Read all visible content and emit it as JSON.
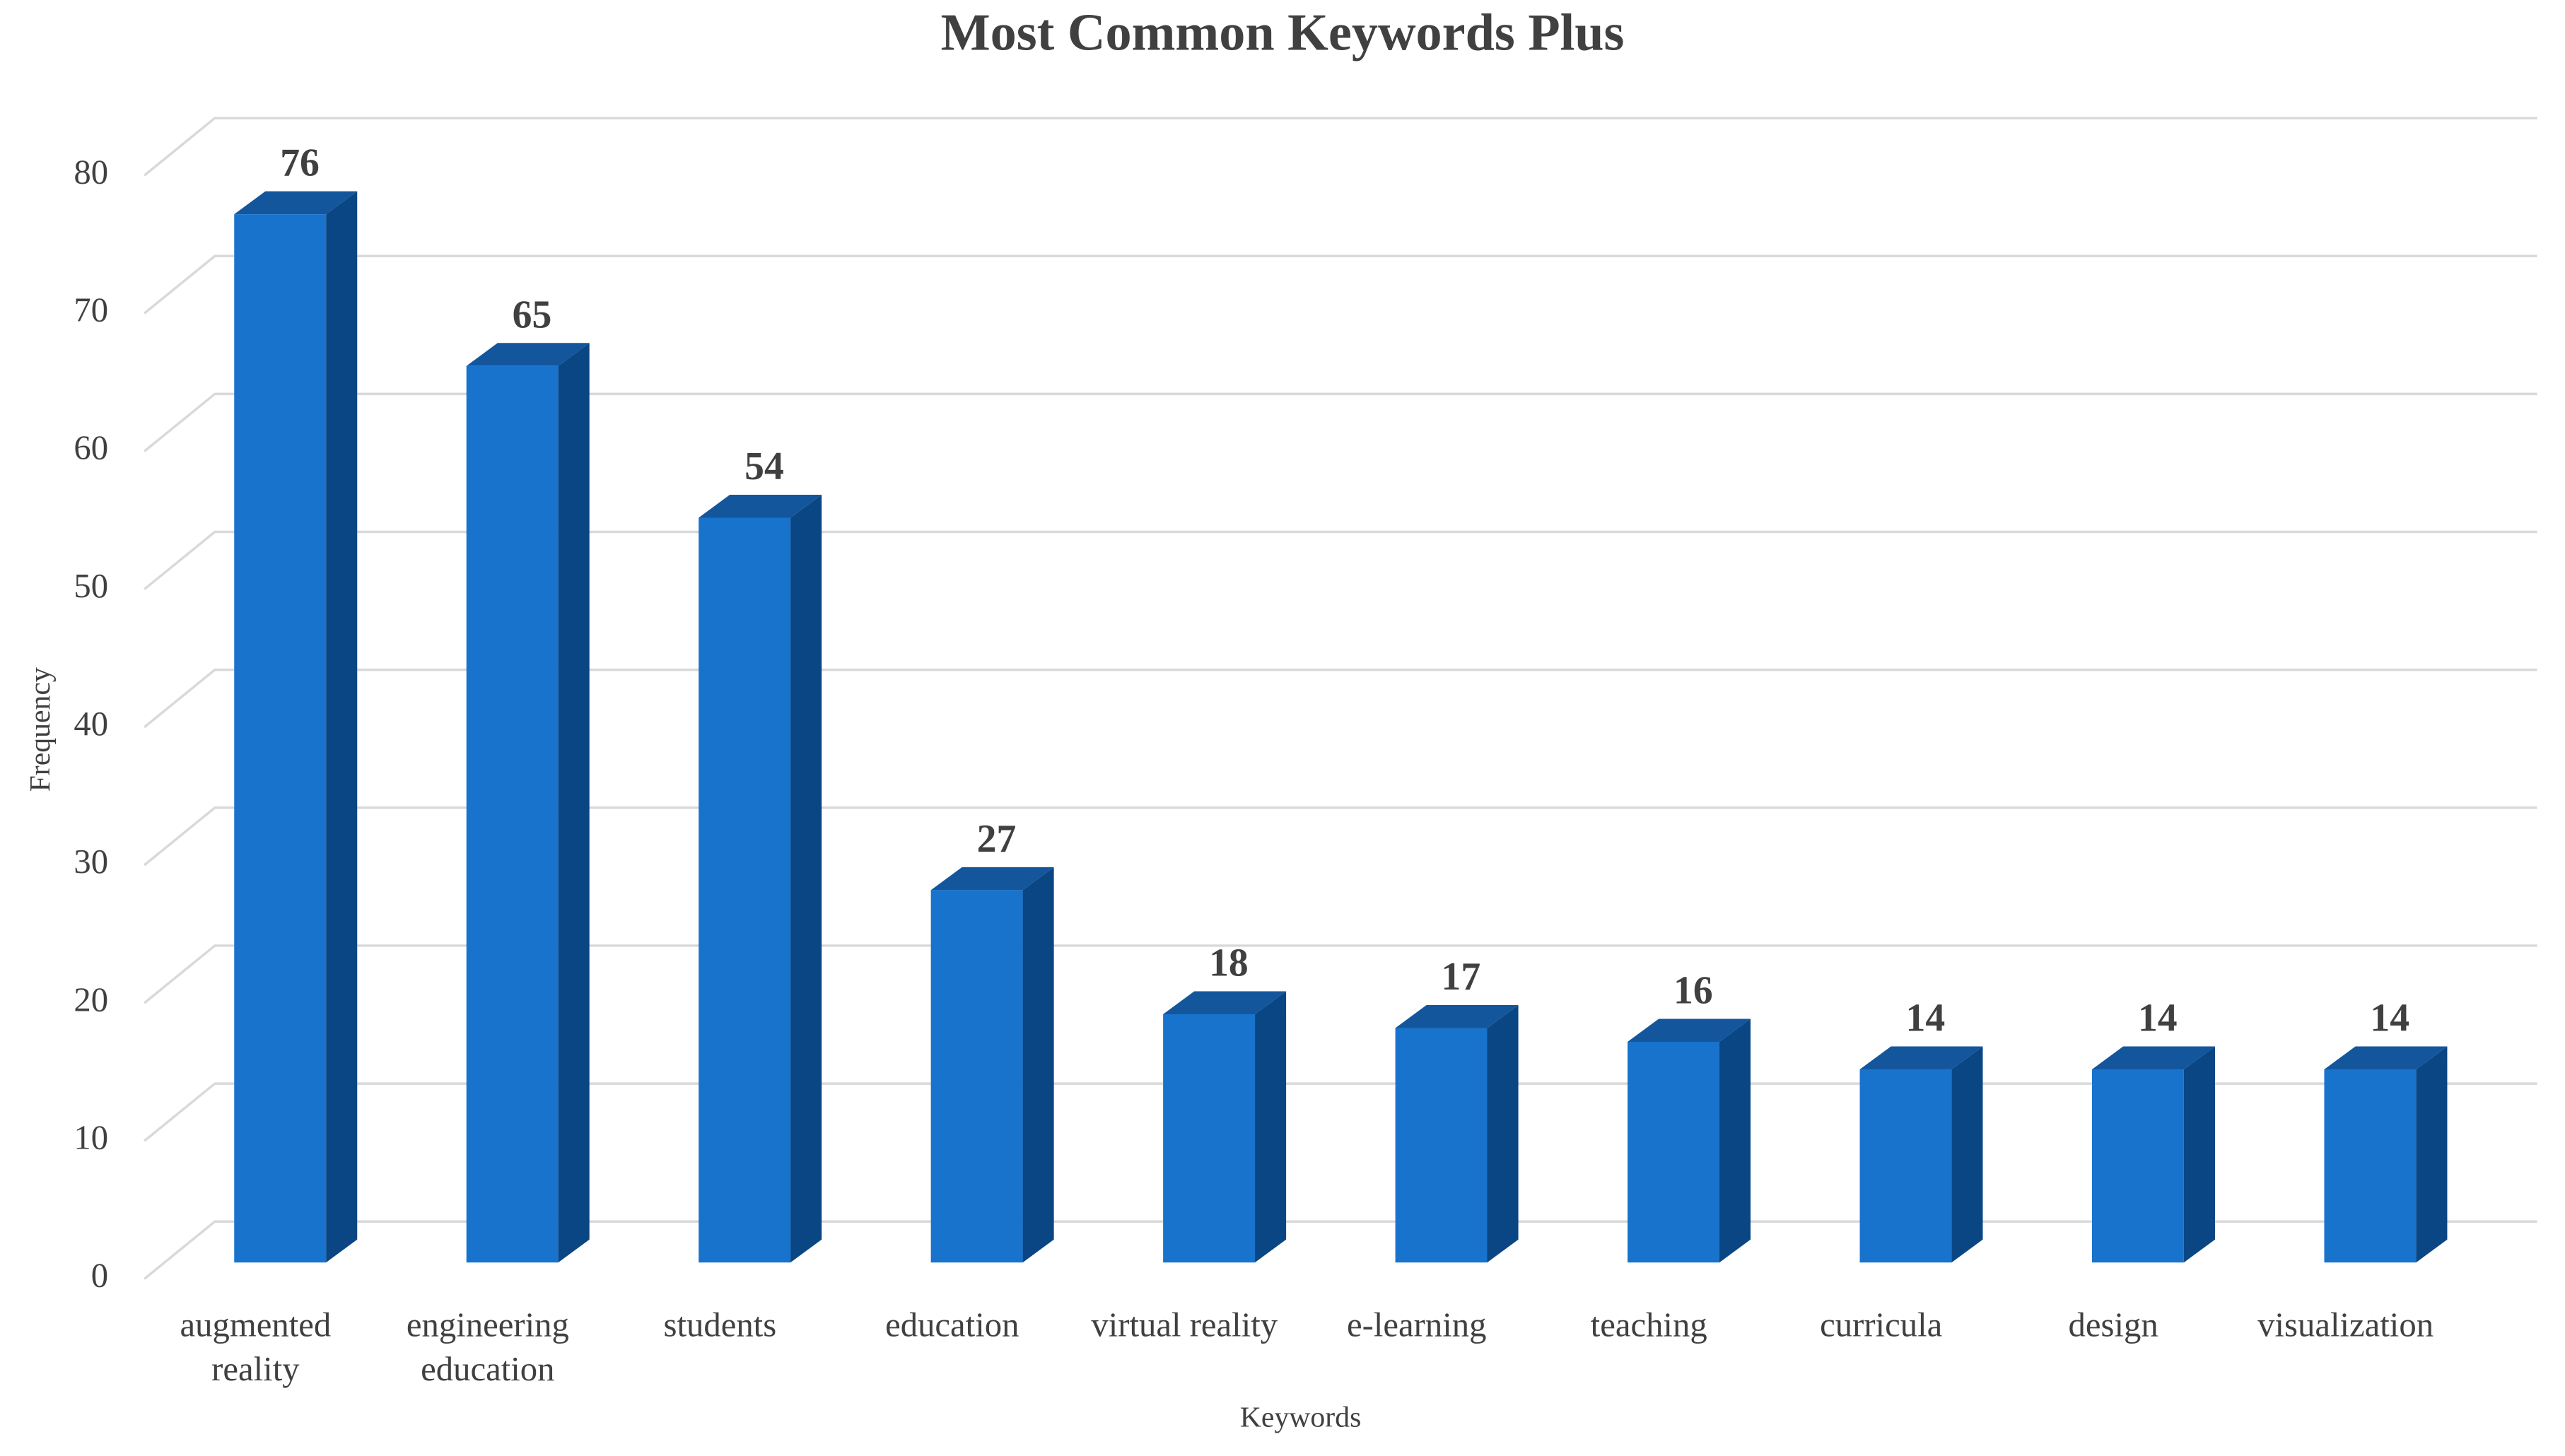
{
  "chart_data": {
    "type": "bar3d",
    "title": "Most Common Keywords Plus",
    "x_label": "Keywords",
    "y_label": "Frequency",
    "categories": [
      "augmented reality",
      "engineering education",
      "students",
      "education",
      "virtual reality",
      "e-learning",
      "teaching",
      "curricula",
      "design",
      "visualization"
    ],
    "values": [
      76,
      65,
      54,
      27,
      18,
      17,
      16,
      14,
      14,
      14
    ],
    "color": "#1873CC",
    "ylim": [
      0,
      80
    ],
    "yticks": [
      0,
      10,
      20,
      30,
      40,
      50,
      60,
      70,
      80
    ],
    "grid": true
  }
}
